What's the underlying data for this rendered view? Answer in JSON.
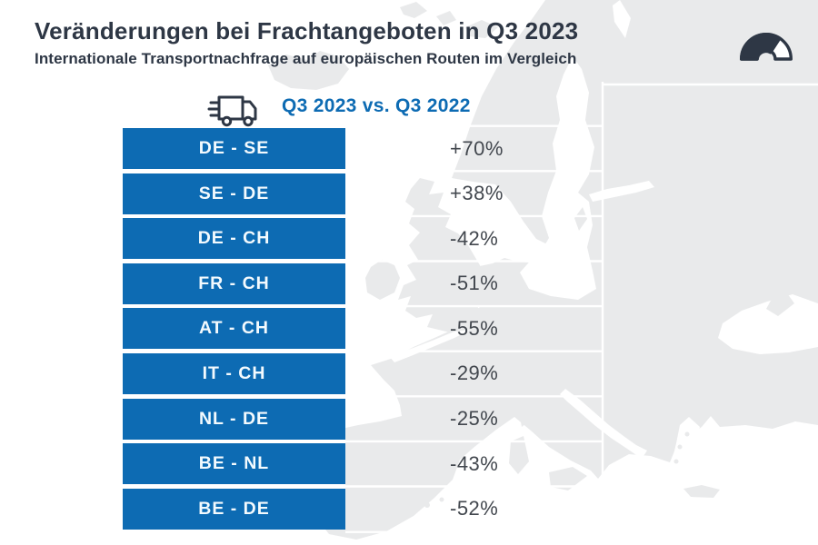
{
  "header": {
    "title": "Veränderungen bei Frachtangeboten in Q3 2023",
    "subtitle": "Internationale Transportnachfrage auf europäischen Routen im Vergleich"
  },
  "comparison_label": "Q3 2023 vs. Q3 2022",
  "routes": [
    {
      "route": "DE - SE",
      "change": "+70%"
    },
    {
      "route": "SE - DE",
      "change": "+38%"
    },
    {
      "route": "DE - CH",
      "change": "-42%"
    },
    {
      "route": "FR - CH",
      "change": "-51%"
    },
    {
      "route": "AT - CH",
      "change": "-55%"
    },
    {
      "route": "IT - CH",
      "change": "-29%"
    },
    {
      "route": "NL - DE",
      "change": "-25%"
    },
    {
      "route": "BE - NL",
      "change": "-43%"
    },
    {
      "route": "BE - DE",
      "change": "-52%"
    }
  ],
  "icons": {
    "truck": "truck-icon",
    "logo": "gauge-logo-icon"
  },
  "colors": {
    "accent_blue": "#0d6bb3",
    "navy": "#2e3745",
    "value_text": "#42474e",
    "map_gray": "#e9eaeb",
    "background": "#ffffff"
  },
  "chart_data": {
    "type": "table",
    "title": "Veränderungen bei Frachtangeboten in Q3 2023",
    "subtitle": "Internationale Transportnachfrage auf europäischen Routen im Vergleich",
    "comparison": "Q3 2023 vs. Q3 2022",
    "categories": [
      "DE - SE",
      "SE - DE",
      "DE - CH",
      "FR - CH",
      "AT - CH",
      "IT - CH",
      "NL - DE",
      "BE - NL",
      "BE - DE"
    ],
    "values": [
      70,
      38,
      -42,
      -51,
      -55,
      -29,
      -25,
      -43,
      -52
    ],
    "unit": "%",
    "value_labels": [
      "+70%",
      "+38%",
      "-42%",
      "-51%",
      "-55%",
      "-29%",
      "-25%",
      "-43%",
      "-52%"
    ],
    "legend_position": "none",
    "grid": "white separator lines over gray Europe map background"
  }
}
